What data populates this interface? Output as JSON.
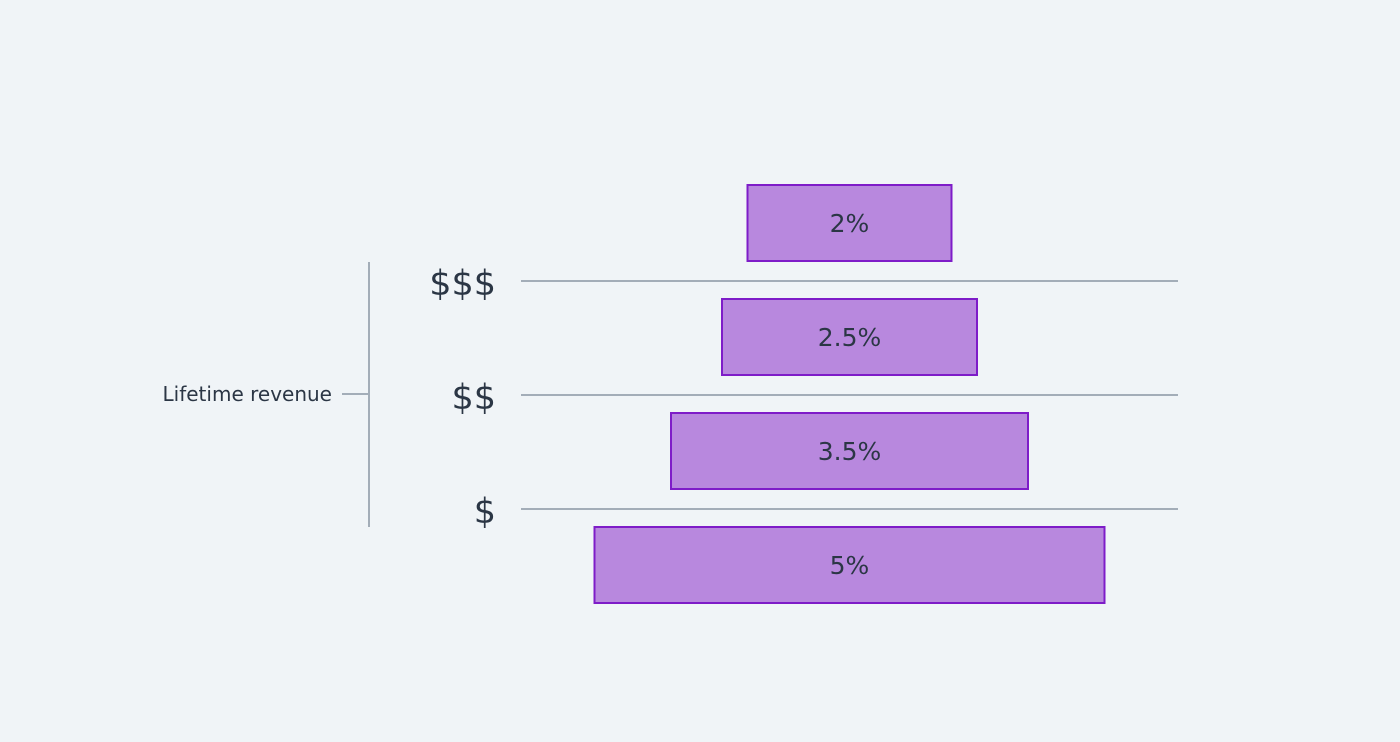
{
  "axis": {
    "title": "Lifetime revenue"
  },
  "tiers": [
    "$$$",
    "$$",
    "$"
  ],
  "chart_data": {
    "type": "bar",
    "categories": [
      "2%",
      "2.5%",
      "3.5%",
      "5%"
    ],
    "values": [
      2,
      2.5,
      3.5,
      5
    ],
    "value_labels": [
      "2%",
      "2.5%",
      "3.5%",
      "5%"
    ]
  },
  "colors": {
    "bar_fill": "#b888de",
    "bar_stroke": "#7e1cc8",
    "line": "#a3adb8",
    "text": "#2b3645",
    "background": "#f0f4f7"
  }
}
